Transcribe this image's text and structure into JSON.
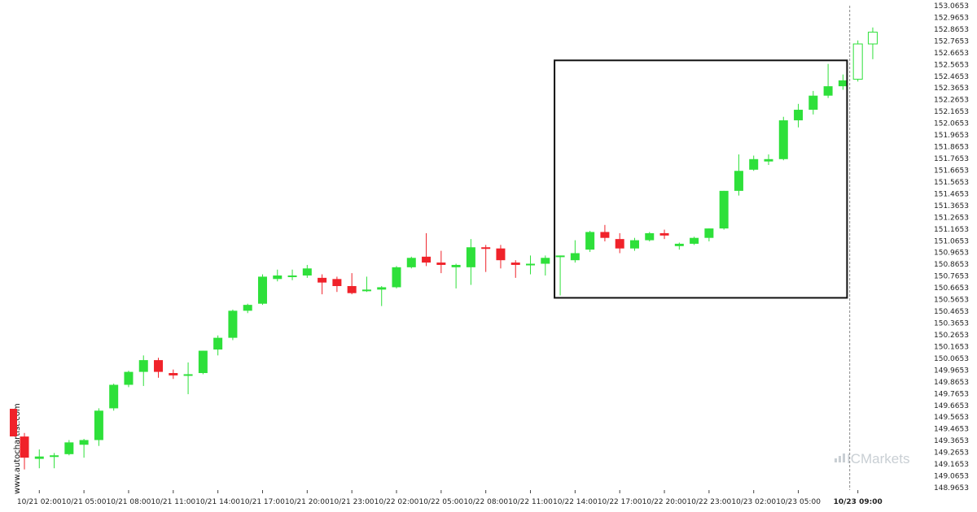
{
  "colors": {
    "up": "#2ee03a",
    "down": "#f0222a",
    "axis": "#222222",
    "box": "#111111",
    "brand": "#c9cfd4"
  },
  "watermark": "www.autochartist.com",
  "brand": {
    "prefix": "IC",
    "name": "Markets"
  },
  "chart_data": {
    "type": "candlestick",
    "ylim": [
      148.91,
      153.09
    ],
    "y_ticks": [
      "153.0653",
      "152.9653",
      "152.8653",
      "152.7653",
      "152.6653",
      "152.5653",
      "152.4653",
      "152.3653",
      "152.2653",
      "152.1653",
      "152.0653",
      "151.9653",
      "151.8653",
      "151.7653",
      "151.6653",
      "151.5653",
      "151.4653",
      "151.3653",
      "151.2653",
      "151.1653",
      "151.0653",
      "150.9653",
      "150.8653",
      "150.7653",
      "150.6653",
      "150.5653",
      "150.4653",
      "150.3653",
      "150.2653",
      "150.1653",
      "150.0653",
      "149.9653",
      "149.8653",
      "149.7653",
      "149.6653",
      "149.5653",
      "149.4653",
      "149.3653",
      "149.2653",
      "149.1653",
      "149.0653",
      "148.9653"
    ],
    "x_ticks": [
      {
        "label": "10/21 02:00",
        "bar": 1
      },
      {
        "label": "10/21 05:00",
        "bar": 4
      },
      {
        "label": "10/21 08:00",
        "bar": 7
      },
      {
        "label": "10/21 11:00",
        "bar": 10
      },
      {
        "label": "10/21 14:00",
        "bar": 13
      },
      {
        "label": "10/21 17:00",
        "bar": 16
      },
      {
        "label": "10/21 20:00",
        "bar": 19
      },
      {
        "label": "10/21 23:00",
        "bar": 22
      },
      {
        "label": "10/22 02:00",
        "bar": 25
      },
      {
        "label": "10/22 05:00",
        "bar": 28
      },
      {
        "label": "10/22 08:00",
        "bar": 31
      },
      {
        "label": "10/22 11:00",
        "bar": 34
      },
      {
        "label": "10/22 14:00",
        "bar": 37
      },
      {
        "label": "10/22 17:00",
        "bar": 40
      },
      {
        "label": "10/22 20:00",
        "bar": 43
      },
      {
        "label": "10/22 23:00",
        "bar": 46
      },
      {
        "label": "10/23 02:00",
        "bar": 49
      },
      {
        "label": "10/23 05:00",
        "bar": 52
      },
      {
        "label": "10/23 09:00",
        "bar": 56,
        "bold": true
      }
    ],
    "candles": [
      {
        "o": 149.4,
        "h": 149.43,
        "l": 149.12,
        "c": 149.22
      },
      {
        "o": 149.21,
        "h": 149.29,
        "l": 149.13,
        "c": 149.23
      },
      {
        "o": 149.23,
        "h": 149.26,
        "l": 149.13,
        "c": 149.24
      },
      {
        "o": 149.25,
        "h": 149.37,
        "l": 149.24,
        "c": 149.35
      },
      {
        "o": 149.33,
        "h": 149.38,
        "l": 149.22,
        "c": 149.37
      },
      {
        "o": 149.37,
        "h": 149.64,
        "l": 149.32,
        "c": 149.62
      },
      {
        "o": 149.64,
        "h": 149.85,
        "l": 149.62,
        "c": 149.84
      },
      {
        "o": 149.84,
        "h": 149.96,
        "l": 149.82,
        "c": 149.95
      },
      {
        "o": 149.95,
        "h": 150.09,
        "l": 149.83,
        "c": 150.05
      },
      {
        "o": 150.05,
        "h": 150.07,
        "l": 149.9,
        "c": 149.95
      },
      {
        "o": 149.94,
        "h": 149.97,
        "l": 149.89,
        "c": 149.92
      },
      {
        "o": 149.93,
        "h": 150.03,
        "l": 149.76,
        "c": 149.93
      },
      {
        "o": 149.94,
        "h": 150.13,
        "l": 149.93,
        "c": 150.13
      },
      {
        "o": 150.14,
        "h": 150.26,
        "l": 150.09,
        "c": 150.24
      },
      {
        "o": 150.24,
        "h": 150.48,
        "l": 150.22,
        "c": 150.47
      },
      {
        "o": 150.47,
        "h": 150.53,
        "l": 150.45,
        "c": 150.52
      },
      {
        "o": 150.53,
        "h": 150.78,
        "l": 150.52,
        "c": 150.76
      },
      {
        "o": 150.74,
        "h": 150.82,
        "l": 150.72,
        "c": 150.77
      },
      {
        "o": 150.76,
        "h": 150.82,
        "l": 150.73,
        "c": 150.77
      },
      {
        "o": 150.77,
        "h": 150.86,
        "l": 150.75,
        "c": 150.83
      },
      {
        "o": 150.75,
        "h": 150.78,
        "l": 150.61,
        "c": 150.71
      },
      {
        "o": 150.74,
        "h": 150.76,
        "l": 150.63,
        "c": 150.68
      },
      {
        "o": 150.68,
        "h": 150.79,
        "l": 150.61,
        "c": 150.62
      },
      {
        "o": 150.64,
        "h": 150.76,
        "l": 150.63,
        "c": 150.65
      },
      {
        "o": 150.65,
        "h": 150.68,
        "l": 150.51,
        "c": 150.67
      },
      {
        "o": 150.67,
        "h": 150.85,
        "l": 150.66,
        "c": 150.84
      },
      {
        "o": 150.84,
        "h": 150.93,
        "l": 150.83,
        "c": 150.92
      },
      {
        "o": 150.93,
        "h": 151.13,
        "l": 150.85,
        "c": 150.88
      },
      {
        "o": 150.88,
        "h": 150.98,
        "l": 150.79,
        "c": 150.86
      },
      {
        "o": 150.84,
        "h": 150.87,
        "l": 150.66,
        "c": 150.86
      },
      {
        "o": 150.84,
        "h": 151.08,
        "l": 150.69,
        "c": 151.01
      },
      {
        "o": 151.01,
        "h": 151.03,
        "l": 150.8,
        "c": 151.0
      },
      {
        "o": 151.0,
        "h": 151.03,
        "l": 150.83,
        "c": 150.9
      },
      {
        "o": 150.88,
        "h": 150.9,
        "l": 150.75,
        "c": 150.86
      },
      {
        "o": 150.87,
        "h": 150.94,
        "l": 150.78,
        "c": 150.87
      },
      {
        "o": 150.87,
        "h": 150.94,
        "l": 150.77,
        "c": 150.92
      },
      {
        "o": 150.93,
        "h": 150.94,
        "l": 150.6,
        "c": 150.94
      },
      {
        "o": 150.9,
        "h": 151.07,
        "l": 150.88,
        "c": 150.96
      },
      {
        "o": 150.99,
        "h": 151.15,
        "l": 150.97,
        "c": 151.14
      },
      {
        "o": 151.14,
        "h": 151.2,
        "l": 151.06,
        "c": 151.09
      },
      {
        "o": 151.08,
        "h": 151.13,
        "l": 150.96,
        "c": 151.0
      },
      {
        "o": 151.0,
        "h": 151.09,
        "l": 150.98,
        "c": 151.07
      },
      {
        "o": 151.07,
        "h": 151.14,
        "l": 151.06,
        "c": 151.13
      },
      {
        "o": 151.13,
        "h": 151.16,
        "l": 151.08,
        "c": 151.11
      },
      {
        "o": 151.02,
        "h": 151.05,
        "l": 150.99,
        "c": 151.04
      },
      {
        "o": 151.04,
        "h": 151.1,
        "l": 151.03,
        "c": 151.09
      },
      {
        "o": 151.09,
        "h": 151.17,
        "l": 151.06,
        "c": 151.17
      },
      {
        "o": 151.17,
        "h": 151.49,
        "l": 151.16,
        "c": 151.49
      },
      {
        "o": 151.49,
        "h": 151.8,
        "l": 151.45,
        "c": 151.66
      },
      {
        "o": 151.67,
        "h": 151.79,
        "l": 151.66,
        "c": 151.76
      },
      {
        "o": 151.74,
        "h": 151.8,
        "l": 151.71,
        "c": 151.76
      },
      {
        "o": 151.76,
        "h": 152.12,
        "l": 151.75,
        "c": 152.09
      },
      {
        "o": 152.09,
        "h": 152.23,
        "l": 152.03,
        "c": 152.18
      },
      {
        "o": 152.18,
        "h": 152.34,
        "l": 152.14,
        "c": 152.3
      },
      {
        "o": 152.3,
        "h": 152.57,
        "l": 152.28,
        "c": 152.38
      },
      {
        "o": 152.38,
        "h": 152.48,
        "l": 152.35,
        "c": 152.43
      },
      {
        "o": 152.44,
        "h": 152.77,
        "l": 152.42,
        "c": 152.74,
        "hollow": true
      },
      {
        "o": 152.74,
        "h": 152.88,
        "l": 152.61,
        "c": 152.84,
        "hollow": true
      }
    ],
    "pattern_box": {
      "from_bar": 36,
      "to_bar": 55,
      "y_top": 152.6,
      "y_bottom": 150.58
    },
    "current_bar": 56
  }
}
